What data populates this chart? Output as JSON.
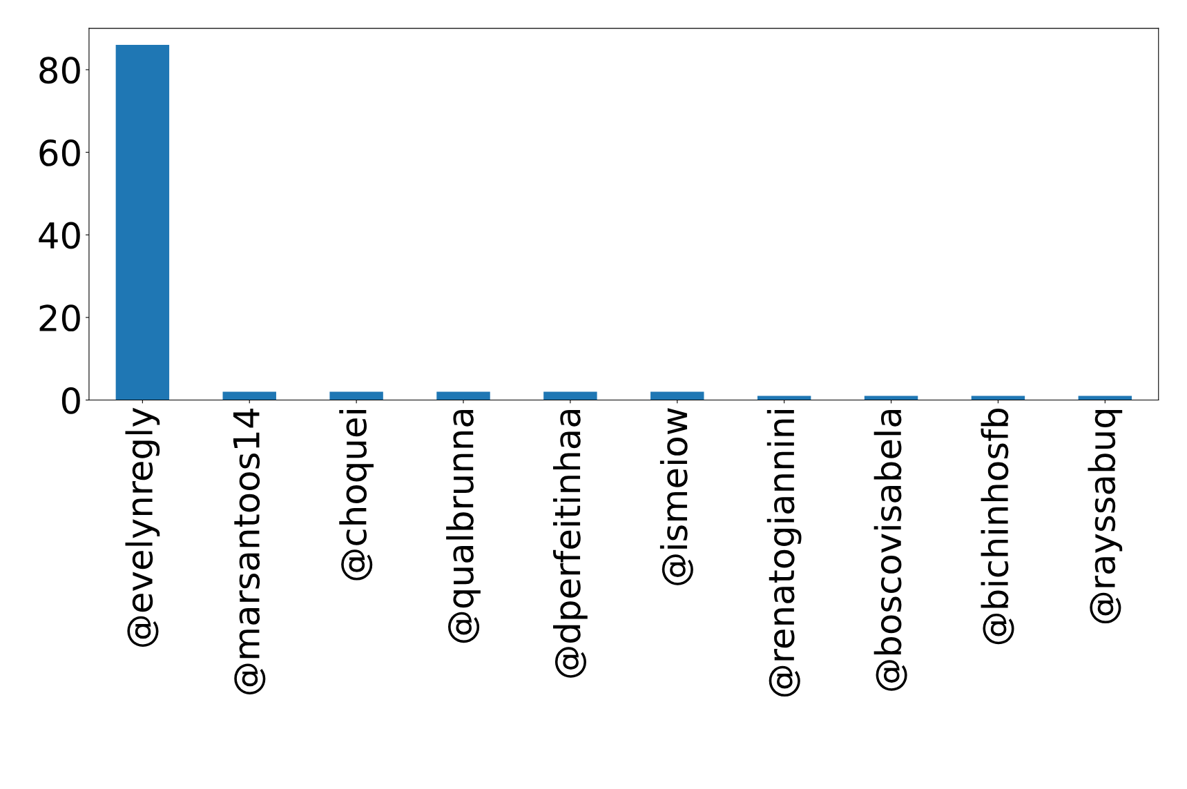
{
  "chart_data": {
    "type": "bar",
    "categories": [
      "@evelynregly",
      "@marsantoos14",
      "@choquei",
      "@qualbrunna",
      "@dperfeitinhaa",
      "@ismeiow",
      "@renatogiannini",
      "@boscovisabela",
      "@bichinhosfb",
      "@rayssabuq"
    ],
    "values": [
      86,
      2,
      2,
      2,
      2,
      2,
      1,
      1,
      1,
      1
    ],
    "color": "#1f77b4",
    "ylim": [
      0,
      90
    ],
    "yticks": [
      0,
      20,
      40,
      60,
      80
    ],
    "grid": false,
    "legend": false
  }
}
